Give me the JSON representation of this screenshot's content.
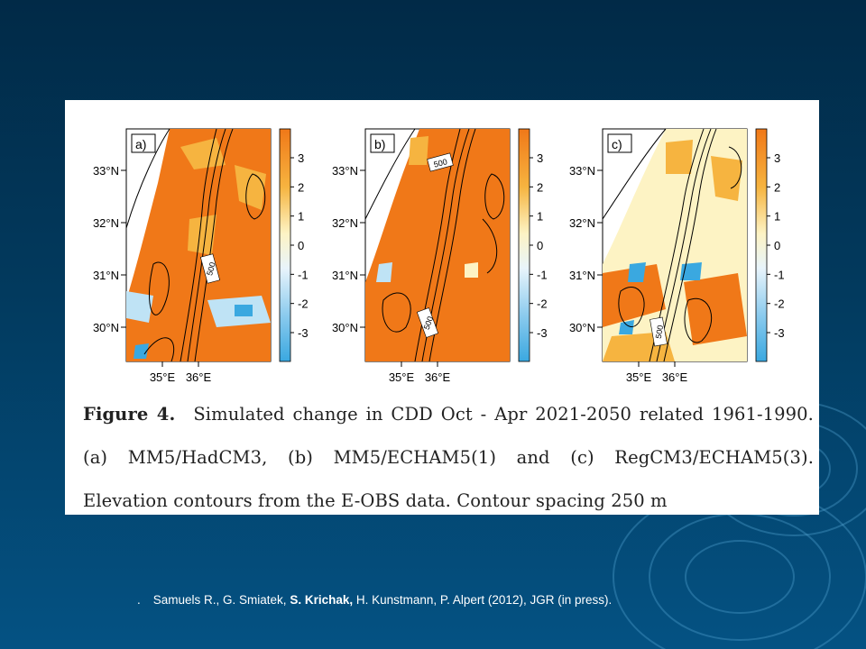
{
  "figure": {
    "panels": [
      {
        "label": "a)",
        "contour_label": "500"
      },
      {
        "label": "b)",
        "contour_label": "500"
      },
      {
        "label": "c)",
        "contour_label": "500"
      }
    ],
    "lat_ticks": [
      "33°N",
      "32°N",
      "31°N",
      "30°N"
    ],
    "lon_ticks": [
      "35°E",
      "36°E"
    ],
    "colorbar_ticks": [
      "3",
      "2",
      "1",
      "0",
      "-1",
      "-2",
      "-3"
    ],
    "colors": {
      "high": "#f07818",
      "mid": "#fbe7a6",
      "low": "#3aa8e0"
    }
  },
  "caption": {
    "figure_label": "Figure 4.",
    "text": "Simulated change in CDD Oct - Apr 2021-2050 related 1961-1990. (a) MM5/HadCM3, (b) MM5/ECHAM5(1) and (c) RegCM3/ECHAM5(3). Elevation contours from the E-OBS data. Contour spacing 250 m"
  },
  "citation": {
    "bullet": ".",
    "before": "Samuels R., G. Smiatek, ",
    "bold": "S. Krichak,",
    "after": " H. Kunstmann, P. Alpert (2012), JGR (in press)."
  }
}
